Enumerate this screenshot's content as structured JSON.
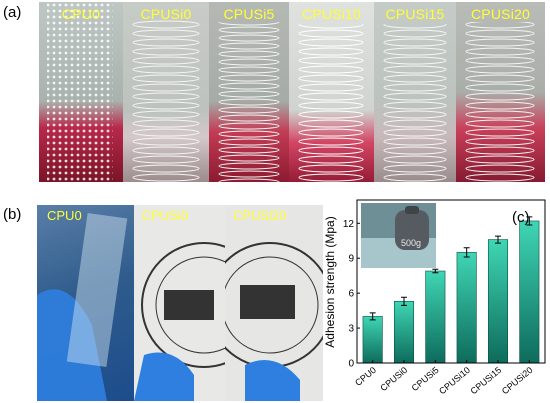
{
  "panels": {
    "a": "(a)",
    "b": "(b)",
    "c": "(c)"
  },
  "panel_a": {
    "labels": [
      "CPU0",
      "CPUSi0",
      "CPUSi5",
      "CPUSi10",
      "CPUSi15",
      "CPUSi20"
    ]
  },
  "panel_b": {
    "labels": [
      "CPU0",
      "CPUSi0",
      "CPUSi20"
    ]
  },
  "inset": {
    "weight_label": "500g"
  },
  "colors": {
    "label_yellow": "#ffff33",
    "bar_top": "#3fd6b4",
    "bar_bottom": "#0e6b5c"
  },
  "chart_data": {
    "type": "bar",
    "categories": [
      "CPU0",
      "CPUSi0",
      "CPUSi5",
      "CPUSi10",
      "CPUSi15",
      "CPUSi20"
    ],
    "values": [
      4.0,
      5.3,
      7.9,
      9.5,
      10.6,
      12.2
    ],
    "errors": [
      0.3,
      0.35,
      0.15,
      0.4,
      0.3,
      0.35
    ],
    "title": "",
    "xlabel": "",
    "ylabel": "Adhesion strength (Mpa)",
    "ylim": [
      0,
      14
    ],
    "yticks": [
      "0",
      "3",
      "6",
      "9",
      "12"
    ],
    "grid": false
  }
}
